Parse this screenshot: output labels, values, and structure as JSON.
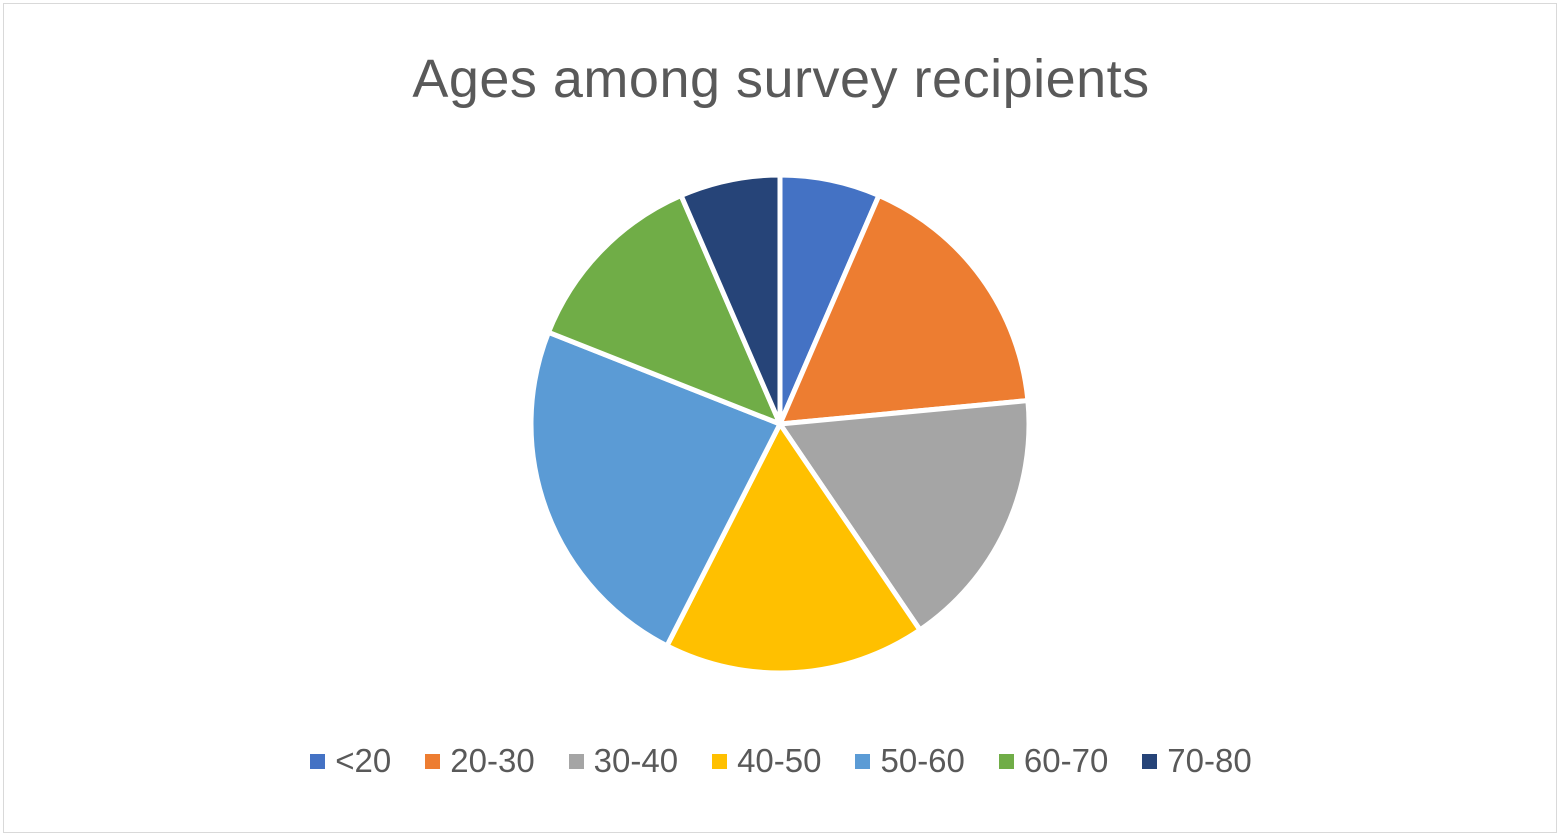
{
  "chart_data": {
    "type": "pie",
    "title": "Ages among survey recipients",
    "categories": [
      "<20",
      "20-30",
      "30-40",
      "40-50",
      "50-60",
      "60-70",
      "70-80"
    ],
    "values": [
      6.5,
      17,
      17,
      17,
      23.5,
      12.5,
      6.5
    ],
    "colors": [
      "#4472c4",
      "#ed7d31",
      "#a5a5a5",
      "#ffc000",
      "#5b9bd5",
      "#70ad47",
      "#264478"
    ],
    "legend": "bottom"
  }
}
